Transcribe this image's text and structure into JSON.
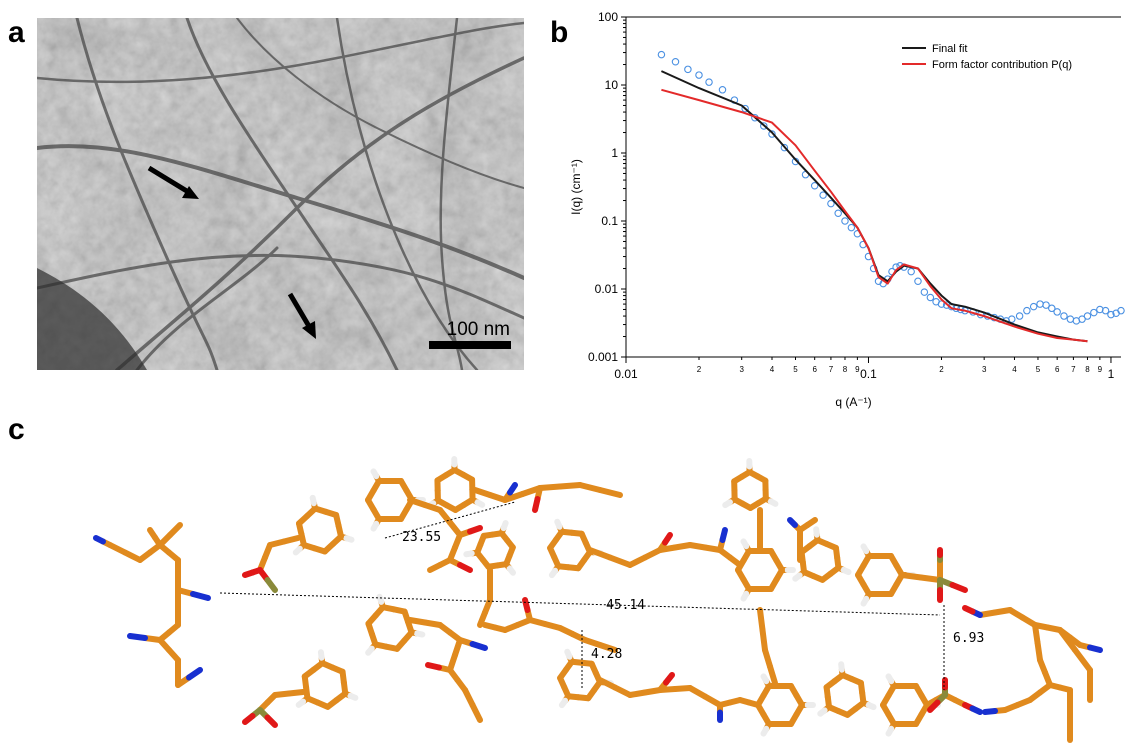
{
  "panels": {
    "a": {
      "letter": "a",
      "scale_bar_label": "100 nm"
    },
    "b": {
      "letter": "b"
    },
    "c": {
      "letter": "c",
      "distances": [
        "23.55",
        "45.14",
        "4.28",
        "6.93"
      ]
    }
  },
  "colors": {
    "final_fit": "#1a1a1a",
    "form_factor": "#e32a2a",
    "data_points": "#4a90e2",
    "carbon": "#e08a1e",
    "oxygen": "#e01818",
    "nitrogen": "#1830d0",
    "hydrogen": "#ececec",
    "phosphorus": "#8a8a3a"
  },
  "chart_data": {
    "type": "scatter",
    "xscale": "log",
    "yscale": "log",
    "xlim": [
      0.01,
      1.1
    ],
    "ylim": [
      0.001,
      100
    ],
    "xlabel": "q (A⁻¹)",
    "ylabel": "I(q) (cm⁻¹)",
    "y_ticks": [
      "100",
      "10",
      "1",
      "0.1",
      "0.01",
      "0.001"
    ],
    "x_major_ticks": [
      "0.01",
      "0.1",
      "1"
    ],
    "x_minor_tick_labels": [
      "2",
      "3",
      "4",
      "5",
      "6",
      "7",
      "8",
      "9"
    ],
    "legend": {
      "position": "top-right",
      "entries": [
        "Final fit",
        "Form factor contribution P(q)"
      ]
    },
    "series": [
      {
        "name": "Final fit",
        "kind": "line",
        "color": "#1a1a1a",
        "x": [
          0.014,
          0.02,
          0.03,
          0.04,
          0.05,
          0.06,
          0.07,
          0.08,
          0.09,
          0.1,
          0.11,
          0.12,
          0.13,
          0.14,
          0.16,
          0.18,
          0.2,
          0.22,
          0.25,
          0.3,
          0.4,
          0.5,
          0.6,
          0.7,
          0.8
        ],
        "y": [
          16,
          9,
          5,
          2,
          0.8,
          0.4,
          0.22,
          0.13,
          0.08,
          0.04,
          0.016,
          0.013,
          0.018,
          0.022,
          0.02,
          0.012,
          0.008,
          0.006,
          0.0055,
          0.0045,
          0.003,
          0.0023,
          0.002,
          0.0018,
          0.0017
        ]
      },
      {
        "name": "Form factor contribution P(q)",
        "kind": "line",
        "color": "#e32a2a",
        "x": [
          0.014,
          0.02,
          0.03,
          0.04,
          0.05,
          0.06,
          0.07,
          0.08,
          0.09,
          0.1,
          0.11,
          0.12,
          0.13,
          0.14,
          0.16,
          0.18,
          0.2,
          0.22,
          0.25,
          0.3,
          0.4,
          0.5,
          0.6,
          0.7,
          0.8
        ],
        "y": [
          8.5,
          6,
          4,
          2.8,
          1.3,
          0.55,
          0.27,
          0.14,
          0.08,
          0.04,
          0.015,
          0.012,
          0.019,
          0.023,
          0.02,
          0.011,
          0.007,
          0.0052,
          0.0048,
          0.004,
          0.0028,
          0.0022,
          0.0019,
          0.0018,
          0.0017
        ]
      },
      {
        "name": "",
        "kind": "markers",
        "color": "#4a90e2",
        "x": [
          0.014,
          0.016,
          0.018,
          0.02,
          0.022,
          0.025,
          0.028,
          0.031,
          0.034,
          0.037,
          0.04,
          0.045,
          0.05,
          0.055,
          0.06,
          0.065,
          0.07,
          0.075,
          0.08,
          0.085,
          0.09,
          0.095,
          0.1,
          0.105,
          0.11,
          0.115,
          0.12,
          0.125,
          0.13,
          0.135,
          0.14,
          0.15,
          0.16,
          0.17,
          0.18,
          0.19,
          0.2,
          0.21,
          0.22,
          0.23,
          0.24,
          0.25,
          0.27,
          0.29,
          0.31,
          0.33,
          0.35,
          0.37,
          0.39,
          0.42,
          0.45,
          0.48,
          0.51,
          0.54,
          0.57,
          0.6,
          0.64,
          0.68,
          0.72,
          0.76,
          0.8,
          0.85,
          0.9,
          0.95,
          1.0,
          1.05,
          1.1
        ],
        "y": [
          28,
          22,
          17,
          14,
          11,
          8.5,
          6,
          4.5,
          3.3,
          2.5,
          1.9,
          1.2,
          0.75,
          0.48,
          0.33,
          0.24,
          0.18,
          0.13,
          0.1,
          0.08,
          0.065,
          0.045,
          0.03,
          0.02,
          0.013,
          0.012,
          0.014,
          0.018,
          0.021,
          0.022,
          0.021,
          0.018,
          0.013,
          0.009,
          0.0075,
          0.0065,
          0.006,
          0.0058,
          0.0055,
          0.0052,
          0.005,
          0.0048,
          0.0046,
          0.0042,
          0.004,
          0.0038,
          0.0036,
          0.0034,
          0.0036,
          0.004,
          0.0048,
          0.0055,
          0.006,
          0.0058,
          0.0052,
          0.0046,
          0.004,
          0.0036,
          0.0034,
          0.0036,
          0.004,
          0.0045,
          0.005,
          0.0048,
          0.0042,
          0.0044,
          0.0048
        ]
      }
    ]
  }
}
